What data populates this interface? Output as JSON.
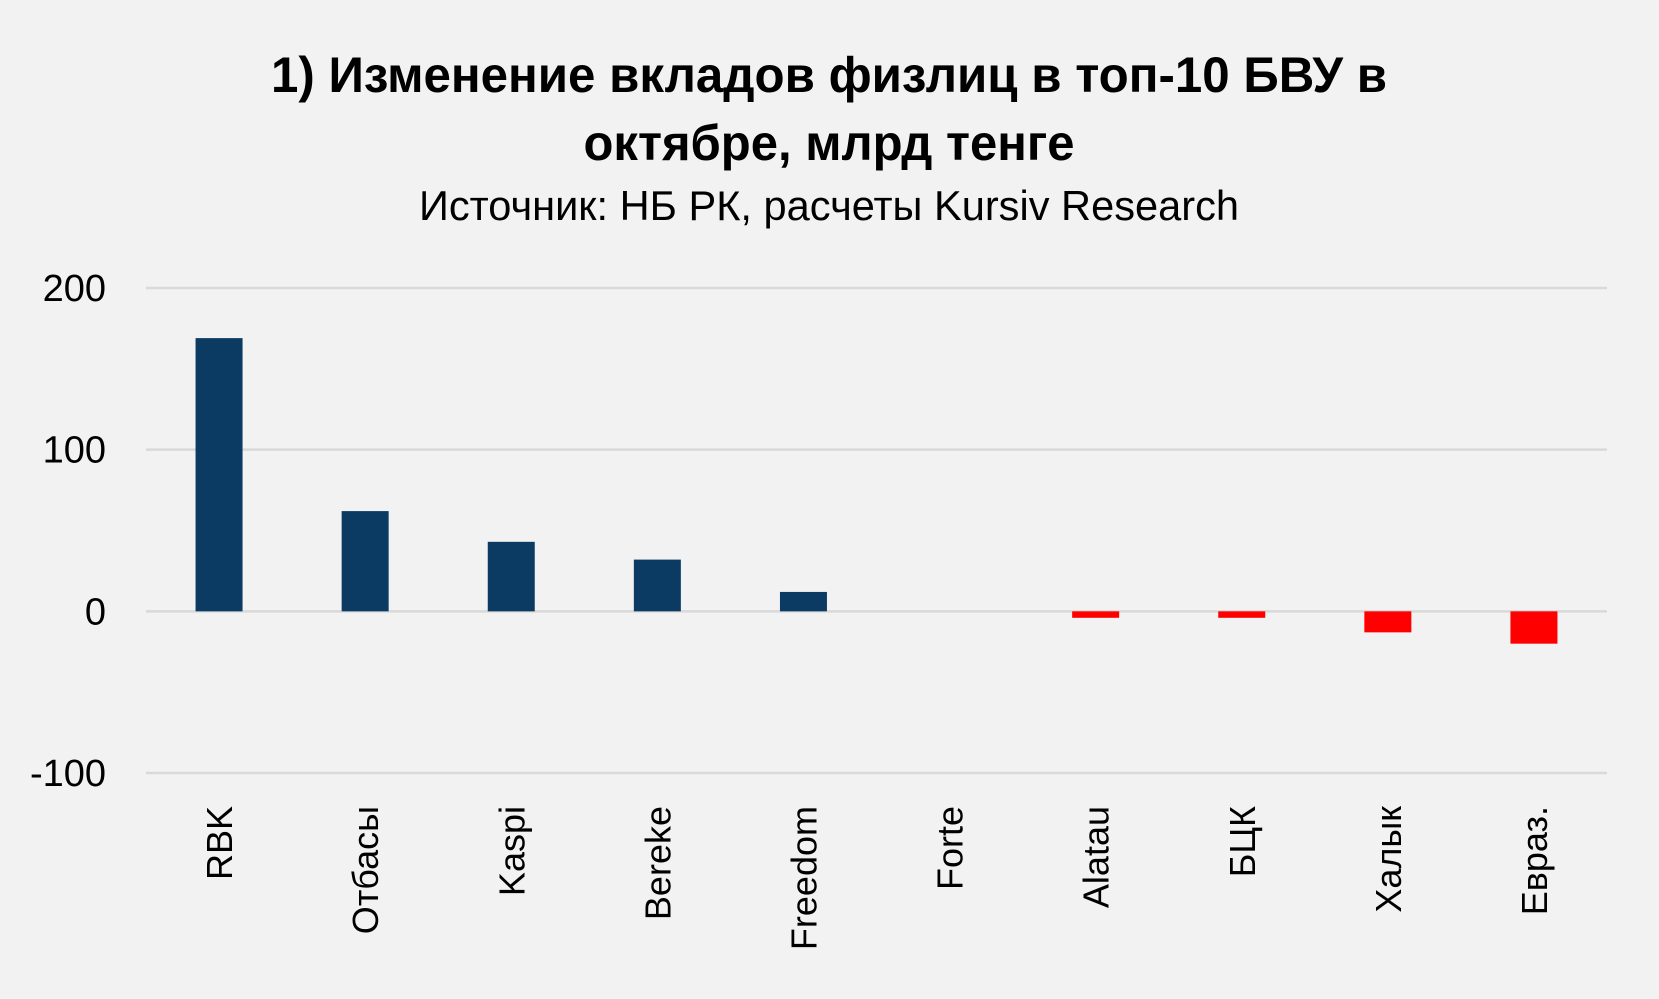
{
  "chart_data": {
    "type": "bar",
    "title": [
      "1) Изменение вкладов физлиц в топ-10 БВУ в",
      "октябре, млрд тенге"
    ],
    "subtitle": "Источник: НБ РК, расчеты Kursiv Research",
    "xlabel": "",
    "ylabel": "",
    "categories": [
      "RBK",
      "Отбасы",
      "Kaspi",
      "Bereke",
      "Freedom",
      "Forte",
      "Alatau",
      "БЦК",
      "Халык",
      "Евраз."
    ],
    "values": [
      169,
      62,
      43,
      32,
      12,
      0,
      -4,
      -4,
      -13,
      -20
    ],
    "ylim": [
      -100,
      200
    ],
    "yticks": [
      200,
      100,
      0,
      -100
    ],
    "ytick_labels": [
      "200",
      "100",
      "0",
      "-100"
    ],
    "grid": true,
    "legend": "none",
    "colors": {
      "positive": "#0b3a63",
      "negative": "#ff0000",
      "grid": "#d9d9d9",
      "background": "#f2f2f2"
    }
  }
}
